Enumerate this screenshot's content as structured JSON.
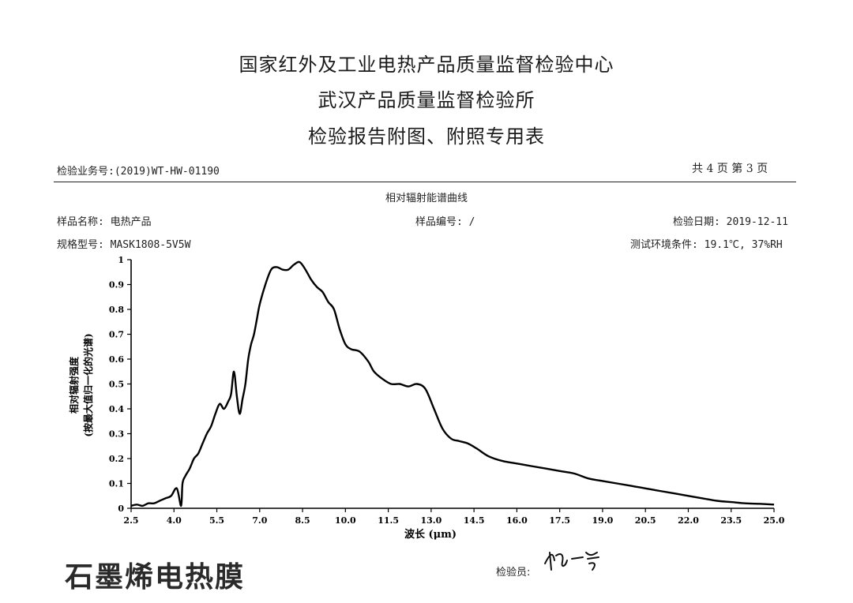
{
  "header": {
    "line1": "国家红外及工业电热产品质量监督检验中心",
    "line2": "武汉产品质量监督检验所",
    "line3": "检验报告附图、附照专用表"
  },
  "report": {
    "business_no": "检验业务号:(2019)WT-HW-01190",
    "page_info": "共 4 页 第 3 页",
    "chart_caption": "相对辐射能谱曲线",
    "sample_name": "样品名称: 电热产品",
    "sample_no": "样品编号: /",
    "inspect_date": "检验日期: 2019-12-11",
    "model": "规格型号: MASK1808-5V5W",
    "conditions": "测试环境条件: 19.1℃, 37%RH"
  },
  "footer": {
    "brand_text": "石墨烯电热膜",
    "inspector_label": "检验员:",
    "signature": "杨一芳"
  },
  "chart_data": {
    "type": "line",
    "title": "相对辐射能谱曲线",
    "xlabel": "波长 (μm)",
    "ylabel_line1": "相对辐射强度",
    "ylabel_line2": "(按最大值归一化的光谱)",
    "xlim": [
      2.5,
      25.0
    ],
    "ylim": [
      0,
      1
    ],
    "x_ticks": [
      "2.5",
      "4.0",
      "5.5",
      "7.0",
      "8.5",
      "10.0",
      "11.5",
      "13.0",
      "14.5",
      "16.0",
      "17.5",
      "19.0",
      "20.5",
      "22.0",
      "23.5",
      "25.0"
    ],
    "y_ticks": [
      "0",
      "0.1",
      "0.2",
      "0.3",
      "0.4",
      "0.5",
      "0.6",
      "0.7",
      "0.8",
      "0.9",
      "1"
    ],
    "grid": false,
    "series": [
      {
        "x": [
          2.5,
          2.7,
          2.9,
          3.1,
          3.3,
          3.5,
          3.7,
          3.9,
          4.1,
          4.25,
          4.3,
          4.4,
          4.55,
          4.7,
          4.85,
          5.0,
          5.15,
          5.3,
          5.45,
          5.6,
          5.75,
          5.9,
          6.0,
          6.1,
          6.2,
          6.3,
          6.4,
          6.5,
          6.6,
          6.7,
          6.8,
          6.9,
          7.0,
          7.2,
          7.4,
          7.6,
          7.8,
          8.0,
          8.2,
          8.4,
          8.6,
          8.8,
          9.0,
          9.2,
          9.4,
          9.6,
          9.8,
          10.0,
          10.2,
          10.5,
          10.8,
          11.0,
          11.3,
          11.6,
          11.9,
          12.2,
          12.5,
          12.8,
          13.1,
          13.4,
          13.7,
          14.0,
          14.3,
          14.6,
          15.0,
          15.5,
          16.0,
          16.5,
          17.0,
          17.5,
          18.0,
          18.5,
          19.0,
          19.5,
          20.0,
          20.5,
          21.0,
          21.5,
          22.0,
          22.5,
          23.0,
          23.5,
          24.0,
          24.5,
          25.0
        ],
        "y": [
          0.01,
          0.015,
          0.01,
          0.02,
          0.02,
          0.03,
          0.04,
          0.05,
          0.08,
          0.01,
          0.1,
          0.13,
          0.16,
          0.2,
          0.22,
          0.26,
          0.3,
          0.33,
          0.38,
          0.42,
          0.4,
          0.43,
          0.46,
          0.55,
          0.45,
          0.38,
          0.44,
          0.5,
          0.6,
          0.66,
          0.7,
          0.76,
          0.82,
          0.9,
          0.96,
          0.97,
          0.96,
          0.96,
          0.98,
          0.99,
          0.96,
          0.92,
          0.89,
          0.87,
          0.83,
          0.8,
          0.72,
          0.66,
          0.64,
          0.63,
          0.59,
          0.55,
          0.52,
          0.5,
          0.5,
          0.49,
          0.5,
          0.48,
          0.4,
          0.32,
          0.28,
          0.27,
          0.26,
          0.24,
          0.21,
          0.19,
          0.18,
          0.17,
          0.16,
          0.15,
          0.14,
          0.12,
          0.11,
          0.1,
          0.09,
          0.08,
          0.07,
          0.06,
          0.05,
          0.04,
          0.03,
          0.025,
          0.02,
          0.018,
          0.015
        ]
      }
    ]
  }
}
